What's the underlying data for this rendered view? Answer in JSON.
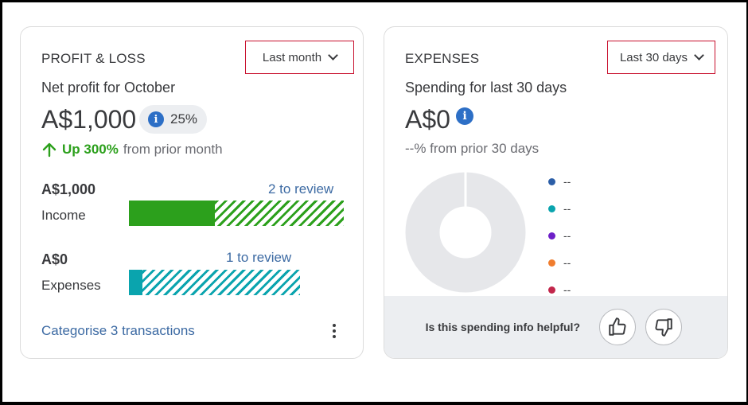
{
  "profit_loss": {
    "title": "PROFIT & LOSS",
    "period_selector": "Last month",
    "subtitle": "Net profit for October",
    "net_profit": "A$1,000",
    "change_badge": "25%",
    "trend_highlight": "Up 300%",
    "trend_text": "from prior month",
    "income": {
      "amount": "A$1,000",
      "label": "Income",
      "review": "2 to review",
      "reviewed_fraction": 0.4,
      "color": "#2ca01c"
    },
    "expenses": {
      "amount": "A$0",
      "label": "Expenses",
      "review": "1 to review",
      "reviewed_fraction": 0.08,
      "color": "#0aa4ae"
    },
    "footer_link": "Categorise 3 transactions"
  },
  "expenses_card": {
    "title": "EXPENSES",
    "period_selector": "Last 30 days",
    "subtitle": "Spending for last 30 days",
    "total": "A$0",
    "comparison": "--% from prior 30 days",
    "legend": [
      {
        "label": "--",
        "color": "#2b5ea7"
      },
      {
        "label": "--",
        "color": "#0aa4ae"
      },
      {
        "label": "--",
        "color": "#6d1fc8"
      },
      {
        "label": "--",
        "color": "#f07d2e"
      },
      {
        "label": "--",
        "color": "#c2264b"
      }
    ],
    "donut_color": "#e6e7ea",
    "feedback_question": "Is this spending info helpful?"
  }
}
